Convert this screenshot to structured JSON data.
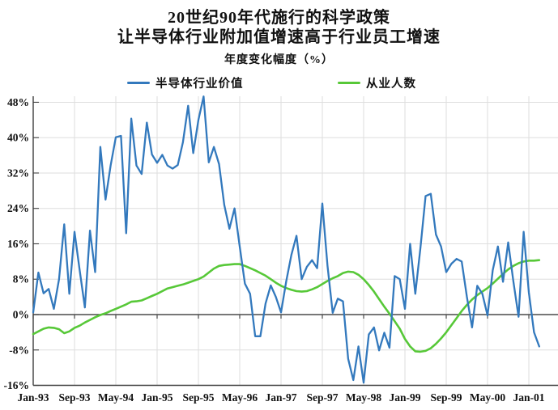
{
  "title": {
    "line1": "20世纪90年代施行的科学政策",
    "line2": "让半导体行业附加值增速高于行业员工增速",
    "subtitle": "年度变化幅度（%）"
  },
  "legend": {
    "items": [
      {
        "label": "半导体行业价值",
        "color": "#3379bd"
      },
      {
        "label": "从业人数",
        "color": "#57c838"
      }
    ]
  },
  "colors": {
    "blue": "#3379bd",
    "green": "#57c838",
    "grid": "#dedede",
    "axis": "#3f3f3f",
    "zero_line": "#4a4a4a",
    "text": "#111111",
    "background": "#ffffff"
  },
  "chart_data": {
    "type": "line",
    "title": "20世纪90年代施行的科学政策 让半导体行业附加值增速高于行业员工增速",
    "subtitle": "年度变化幅度（%）",
    "grid": true,
    "legend_position": "top",
    "x_axis": {
      "interval": "monthly",
      "start": "Jan-93",
      "end": "Mar-01",
      "tick_every_months": 8,
      "tick_labels": [
        "Jan-93",
        "Sep-93",
        "May-94",
        "Jan-95",
        "Sep-95",
        "May-96",
        "Jan-97",
        "Sep-97",
        "May-98",
        "Jan-99",
        "Sep-99",
        "May-00",
        "Jan-01"
      ]
    },
    "y_axis": {
      "unit": "percent",
      "ylim": [
        -16,
        48
      ],
      "ticks": [
        {
          "label": "48%",
          "value": 48
        },
        {
          "label": "40%",
          "value": 40
        },
        {
          "label": "32%",
          "value": 32
        },
        {
          "label": "24%",
          "value": 24
        },
        {
          "label": "16%",
          "value": 16
        },
        {
          "label": "8%",
          "value": 8
        },
        {
          "label": "0%",
          "value": 0
        },
        {
          "label": "-8%",
          "value": -8
        },
        {
          "label": "-16%",
          "value": -16
        }
      ]
    },
    "series": [
      {
        "id": "semiconductor-value",
        "name": "半导体行业价值",
        "color": "#3379bd",
        "values": [
          0.5,
          9.5,
          4.8,
          5.8,
          1.3,
          8.0,
          20.4,
          4.7,
          18.7,
          10.0,
          1.6,
          19.0,
          9.6,
          37.9,
          26.0,
          33.7,
          40.1,
          40.4,
          18.4,
          44.3,
          33.7,
          31.8,
          43.4,
          36.2,
          34.3,
          36.1,
          33.7,
          33.0,
          33.8,
          39.0,
          47.2,
          36.5,
          44.0,
          49.3,
          34.4,
          37.9,
          34.0,
          24.8,
          19.4,
          24.0,
          15.4,
          7.0,
          4.7,
          -4.9,
          -4.9,
          2.5,
          6.6,
          4.0,
          0.5,
          7.5,
          13.5,
          17.8,
          8.0,
          10.8,
          12.3,
          10.5,
          25.1,
          11.0,
          0.4,
          3.6,
          3.0,
          -10.0,
          -14.8,
          -7.2,
          -15.4,
          -4.5,
          -2.9,
          -8.1,
          -4.1,
          -7.5,
          8.7,
          8.0,
          1.3,
          16.0,
          4.7,
          15.0,
          26.8,
          27.3,
          18.1,
          15.4,
          9.6,
          11.5,
          12.6,
          12.0,
          4.0,
          -2.9,
          6.5,
          4.7,
          -0.2,
          10.0,
          15.4,
          7.4,
          16.3,
          7.5,
          -0.5,
          18.7,
          5.0,
          -4.0,
          -7.2
        ]
      },
      {
        "id": "employment",
        "name": "从业人数",
        "color": "#57c838",
        "values": [
          -4.4,
          -3.8,
          -3.2,
          -2.9,
          -3.0,
          -3.3,
          -4.2,
          -3.8,
          -3.0,
          -2.5,
          -1.8,
          -1.2,
          -0.6,
          -0.1,
          0.3,
          0.8,
          1.3,
          1.8,
          2.3,
          2.9,
          3.0,
          3.2,
          3.7,
          4.2,
          4.7,
          5.3,
          5.9,
          6.2,
          6.5,
          6.8,
          7.2,
          7.6,
          8.0,
          8.6,
          9.5,
          10.4,
          11.0,
          11.2,
          11.3,
          11.4,
          11.4,
          11.0,
          10.5,
          10.0,
          9.4,
          8.8,
          8.0,
          7.2,
          6.5,
          6.0,
          5.6,
          5.3,
          5.2,
          5.3,
          5.7,
          6.2,
          6.9,
          7.6,
          8.2,
          8.7,
          9.4,
          9.7,
          9.6,
          9.0,
          8.0,
          6.7,
          5.2,
          3.5,
          1.8,
          0.2,
          -1.5,
          -3.2,
          -5.5,
          -7.2,
          -8.3,
          -8.4,
          -8.2,
          -7.6,
          -6.6,
          -5.4,
          -4.0,
          -2.4,
          -0.8,
          0.8,
          2.2,
          3.4,
          4.4,
          5.2,
          6.0,
          7.0,
          8.1,
          9.2,
          10.2,
          11.0,
          11.6,
          12.0,
          12.2,
          12.2,
          12.3
        ]
      }
    ]
  }
}
